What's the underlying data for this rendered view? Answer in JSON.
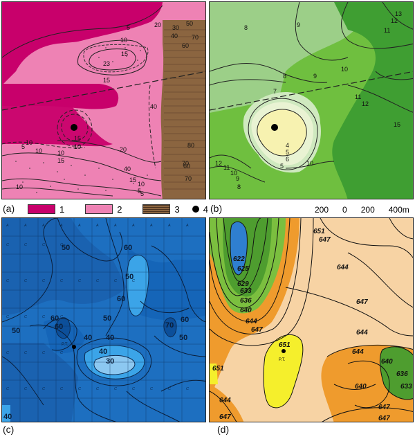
{
  "panels": {
    "a": {
      "label": "(a)"
    },
    "b": {
      "label": "(b)"
    },
    "c": {
      "label": "(c)"
    },
    "d": {
      "label": "(d)"
    }
  },
  "legend": {
    "items": [
      {
        "number": "1",
        "color": "#c8006b"
      },
      {
        "number": "2",
        "color": "#ee82b4"
      },
      {
        "number": "3",
        "color": "#8b6540"
      },
      {
        "number": "4"
      }
    ]
  },
  "scale": {
    "ticks": [
      "200",
      "0",
      "200",
      "400m"
    ]
  },
  "panel_a_labels": [
    "5",
    "10",
    "15",
    "20",
    "23",
    "15",
    "20",
    "30",
    "40",
    "50",
    "60",
    "70",
    "80",
    "15",
    "10",
    "10",
    "10",
    "5",
    "10",
    "20",
    "40",
    "15",
    "10",
    "5",
    "15",
    "10",
    "40",
    "60",
    "70",
    "60",
    "70",
    "5"
  ],
  "panel_b_labels": [
    "8",
    "9",
    "10",
    "11",
    "12",
    "13",
    "8",
    "9",
    "10",
    "11",
    "12",
    "13",
    "7",
    "15",
    "4",
    "5",
    "6",
    "5",
    "5",
    "10",
    "12",
    "11",
    "10",
    "9",
    "8"
  ],
  "panel_c_labels": [
    "50",
    "60",
    "50",
    "60",
    "60",
    "40",
    "50",
    "50",
    "40",
    "30",
    "40",
    "60",
    "70",
    "60",
    "50",
    "40",
    "P.T."
  ],
  "panel_d_labels": [
    "651",
    "647",
    "622",
    "625",
    "629",
    "633",
    "636",
    "640",
    "644",
    "647",
    "647",
    "644",
    "651",
    "P.T.",
    "644",
    "640",
    "636",
    "633",
    "640",
    "644",
    "647",
    "644",
    "647",
    "651",
    "647"
  ],
  "colors": {
    "a_magenta": "#c8006b",
    "a_pink": "#ee82b4",
    "a_brown": "#8b6540",
    "b_dark": "#3f9e32",
    "b_mid": "#6fbf3f",
    "b_light": "#9ccf88",
    "b_pale": "#cfe9bf",
    "b_center": "#f7f2b0",
    "c_dark": "#0c4f9a",
    "c_mid": "#1d6fc0",
    "c_light": "#3ba4e8",
    "c_pale": "#8cc8f1",
    "d_bg": "#f7d3a4",
    "d_orange": "#ef9b2d",
    "d_green1": "#4e9d2f",
    "d_green2": "#7bbf3f",
    "d_yellow": "#f5ef2c",
    "d_blue": "#2f7fd0"
  }
}
